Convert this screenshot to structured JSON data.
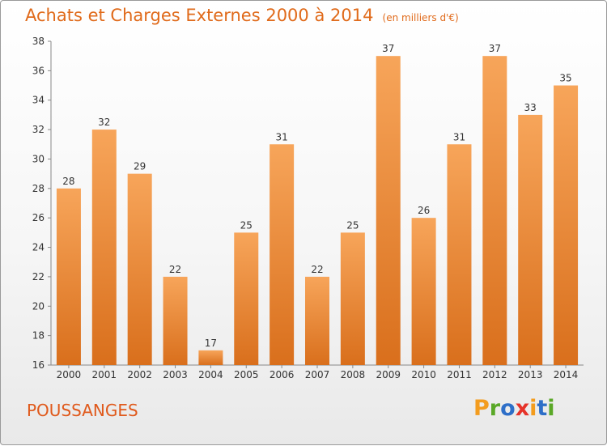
{
  "chart_data": {
    "type": "bar",
    "title": "Achats et Charges Externes 2000 à 2014",
    "subtitle": "(en milliers d'€)",
    "categories": [
      "2000",
      "2001",
      "2002",
      "2003",
      "2004",
      "2005",
      "2006",
      "2007",
      "2008",
      "2009",
      "2010",
      "2011",
      "2012",
      "2013",
      "2014"
    ],
    "values": [
      28,
      32,
      29,
      22,
      17,
      25,
      31,
      22,
      25,
      37,
      26,
      31,
      37,
      33,
      35
    ],
    "ylim": [
      16,
      38
    ],
    "yticks": [
      16,
      18,
      20,
      22,
      24,
      26,
      28,
      30,
      32,
      34,
      36,
      38
    ],
    "grid": false,
    "bar_color": "#e8842e",
    "bar_highlight": "#f7a55a"
  },
  "commune": "POUSSANGES",
  "logo": {
    "text": "Proxiti",
    "letters": [
      "P",
      "r",
      "o",
      "x",
      "i",
      "t",
      "i"
    ],
    "colors": [
      "#f39c1e",
      "#5aa827",
      "#2e6fc8",
      "#e6332a",
      "#f39c1e",
      "#2e6fc8",
      "#5aa827"
    ]
  }
}
